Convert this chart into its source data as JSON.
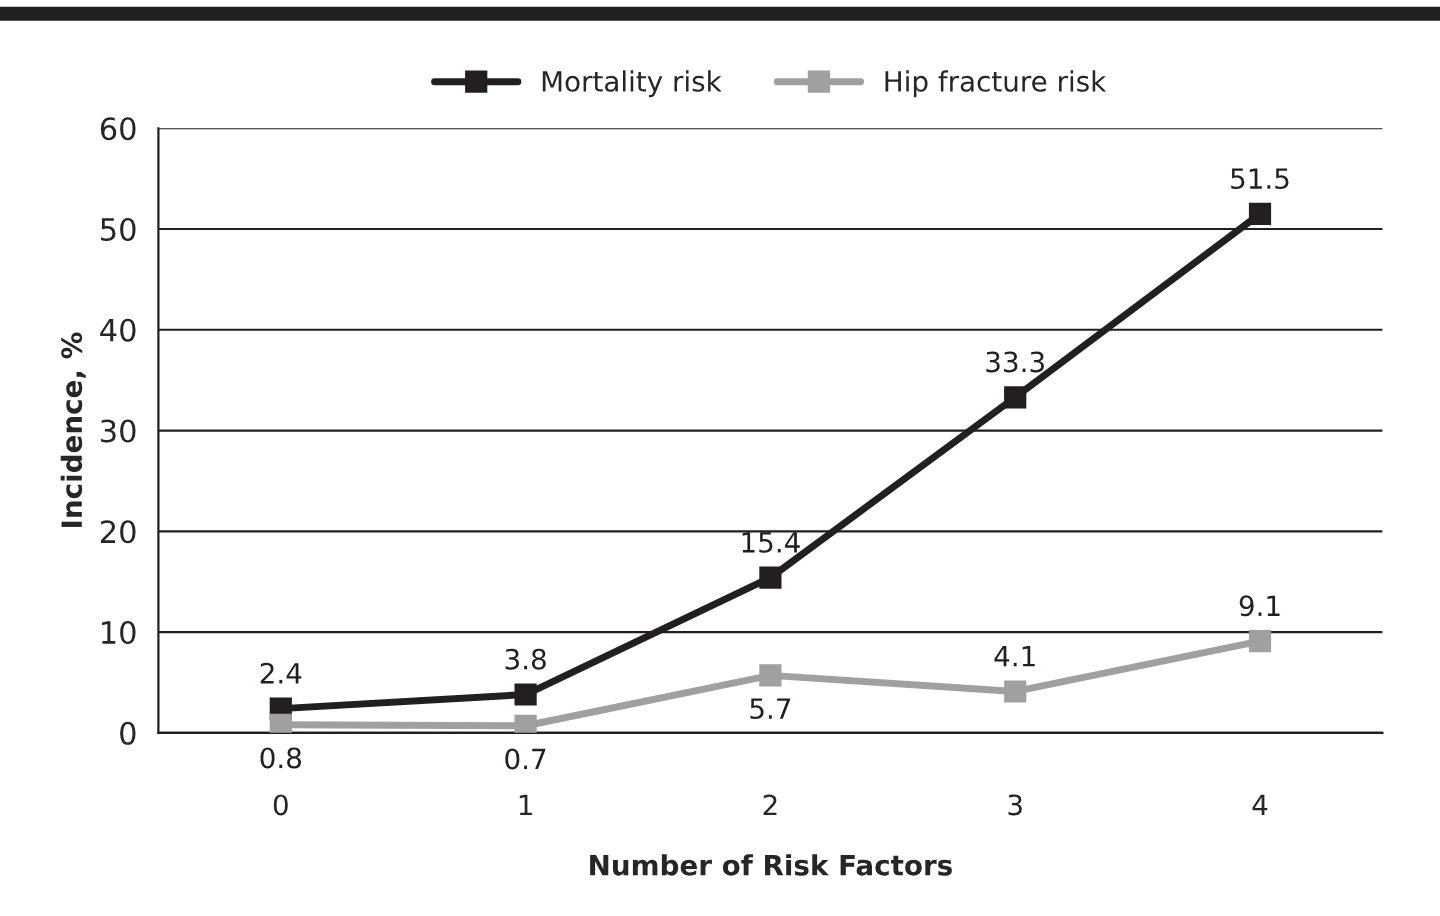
{
  "chart_data": {
    "type": "line",
    "xlabel": "Number of Risk Factors",
    "ylabel": "Incidence, %",
    "categories": [
      "0",
      "1",
      "2",
      "3",
      "4"
    ],
    "series": [
      {
        "name": "Mortality risk",
        "color": "#231f20",
        "values": [
          2.4,
          3.8,
          15.4,
          33.3,
          51.5
        ]
      },
      {
        "name": "Hip fracture risk",
        "color": "#a0a0a0",
        "values": [
          0.8,
          0.7,
          5.7,
          4.1,
          9.1
        ]
      }
    ],
    "ylim": [
      0,
      60
    ],
    "yticks": [
      0,
      10,
      20,
      30,
      40,
      50,
      60
    ],
    "grid": "y",
    "legend": "top",
    "marker": "square",
    "line_style": "solid",
    "data_labels": true
  }
}
